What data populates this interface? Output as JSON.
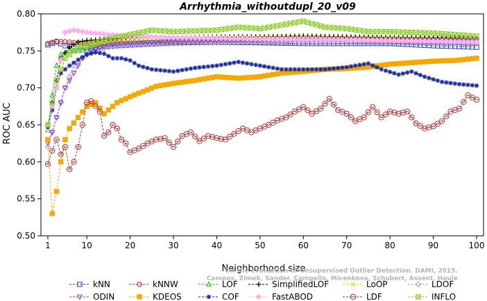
{
  "chart_data": {
    "type": "line",
    "title": "Arrhythmia_withoutdupl_20_v09",
    "xlabel": "Neighborhood size",
    "ylabel": "ROC AUC",
    "xlim": [
      1,
      100
    ],
    "ylim": [
      0.5,
      0.8
    ],
    "xticks": [
      1,
      10,
      20,
      30,
      40,
      50,
      60,
      70,
      80,
      90,
      100
    ],
    "yticks": [
      0.5,
      0.55,
      0.6,
      0.65,
      0.7,
      0.75,
      0.8
    ],
    "xtick_labels": [
      "1",
      "10",
      "20",
      "30",
      "40",
      "50",
      "60",
      "70",
      "80",
      "90",
      "100"
    ],
    "ytick_labels": [
      "0.50",
      "0.55",
      "0.60",
      "0.65",
      "0.70",
      "0.75",
      "0.80"
    ],
    "grid": false,
    "legend_position": "bottom",
    "series": [
      {
        "name": "kNN",
        "color": "#1f3fbf",
        "marker": "square",
        "points": [
          [
            1,
            0.758
          ],
          [
            3,
            0.762
          ],
          [
            5,
            0.757
          ],
          [
            10,
            0.755
          ],
          [
            20,
            0.758
          ],
          [
            30,
            0.761
          ],
          [
            40,
            0.762
          ],
          [
            50,
            0.761
          ],
          [
            60,
            0.76
          ],
          [
            70,
            0.76
          ],
          [
            80,
            0.76
          ],
          [
            90,
            0.757
          ],
          [
            100,
            0.755
          ]
        ]
      },
      {
        "name": "kNNW",
        "color": "#cc2020",
        "marker": "circle",
        "points": [
          [
            1,
            0.76
          ],
          [
            3,
            0.763
          ],
          [
            10,
            0.76
          ],
          [
            20,
            0.761
          ],
          [
            30,
            0.762
          ],
          [
            40,
            0.762
          ],
          [
            50,
            0.762
          ],
          [
            60,
            0.762
          ],
          [
            70,
            0.763
          ],
          [
            80,
            0.763
          ],
          [
            90,
            0.762
          ],
          [
            100,
            0.76
          ]
        ]
      },
      {
        "name": "LOF",
        "color": "#22bb22",
        "marker": "triangle-up",
        "points": [
          [
            1,
            0.643
          ],
          [
            2,
            0.69
          ],
          [
            3,
            0.73
          ],
          [
            4,
            0.745
          ],
          [
            6,
            0.75
          ],
          [
            8,
            0.75
          ],
          [
            10,
            0.752
          ],
          [
            15,
            0.758
          ],
          [
            20,
            0.762
          ],
          [
            30,
            0.764
          ],
          [
            40,
            0.765
          ],
          [
            50,
            0.766
          ],
          [
            60,
            0.766
          ],
          [
            70,
            0.767
          ],
          [
            80,
            0.766
          ],
          [
            90,
            0.766
          ],
          [
            100,
            0.765
          ]
        ]
      },
      {
        "name": "SimplifiedLOF",
        "color": "#000000",
        "marker": "plus",
        "points": [
          [
            1,
            0.65
          ],
          [
            2,
            0.68
          ],
          [
            3,
            0.71
          ],
          [
            4,
            0.74
          ],
          [
            6,
            0.755
          ],
          [
            8,
            0.762
          ],
          [
            10,
            0.764
          ],
          [
            20,
            0.768
          ],
          [
            30,
            0.768
          ],
          [
            40,
            0.769
          ],
          [
            50,
            0.769
          ],
          [
            60,
            0.77
          ],
          [
            70,
            0.769
          ],
          [
            80,
            0.768
          ],
          [
            90,
            0.768
          ],
          [
            100,
            0.767
          ]
        ]
      },
      {
        "name": "LoOP",
        "color": "#e8d800",
        "marker": "x",
        "points": [
          [
            1,
            0.645
          ],
          [
            3,
            0.7
          ],
          [
            5,
            0.74
          ],
          [
            8,
            0.755
          ],
          [
            10,
            0.758
          ],
          [
            20,
            0.764
          ],
          [
            30,
            0.766
          ],
          [
            40,
            0.767
          ],
          [
            50,
            0.767
          ],
          [
            60,
            0.768
          ],
          [
            70,
            0.767
          ],
          [
            80,
            0.767
          ],
          [
            90,
            0.766
          ],
          [
            100,
            0.765
          ]
        ]
      },
      {
        "name": "LDOF",
        "color": "#9c9ce0",
        "marker": "diamond",
        "points": [
          [
            1,
            0.62
          ],
          [
            2,
            0.64
          ],
          [
            3,
            0.66
          ],
          [
            5,
            0.7
          ],
          [
            7,
            0.73
          ],
          [
            10,
            0.745
          ],
          [
            15,
            0.755
          ],
          [
            20,
            0.758
          ],
          [
            30,
            0.76
          ],
          [
            40,
            0.761
          ],
          [
            50,
            0.761
          ],
          [
            60,
            0.762
          ],
          [
            70,
            0.762
          ],
          [
            80,
            0.761
          ],
          [
            90,
            0.761
          ],
          [
            100,
            0.76
          ]
        ]
      },
      {
        "name": "ODIN",
        "color": "#9a32cc",
        "marker": "triangle-down",
        "points": [
          [
            1,
            0.625
          ],
          [
            2,
            0.64
          ],
          [
            3,
            0.66
          ],
          [
            4,
            0.68
          ],
          [
            5,
            0.7
          ],
          [
            7,
            0.72
          ],
          [
            9,
            0.74
          ],
          [
            11,
            0.75
          ],
          [
            15,
            0.758
          ],
          [
            20,
            0.76
          ],
          [
            30,
            0.763
          ],
          [
            40,
            0.764
          ],
          [
            50,
            0.765
          ],
          [
            60,
            0.765
          ],
          [
            70,
            0.765
          ],
          [
            80,
            0.764
          ],
          [
            90,
            0.764
          ],
          [
            100,
            0.763
          ]
        ]
      },
      {
        "name": "KDEOS",
        "color": "#f5a800",
        "marker": "square-filled",
        "points": [
          [
            1,
            0.63
          ],
          [
            2,
            0.53
          ],
          [
            3,
            0.56
          ],
          [
            4,
            0.6
          ],
          [
            5,
            0.63
          ],
          [
            6,
            0.645
          ],
          [
            8,
            0.66
          ],
          [
            10,
            0.675
          ],
          [
            12,
            0.68
          ],
          [
            14,
            0.665
          ],
          [
            17,
            0.68
          ],
          [
            20,
            0.688
          ],
          [
            23,
            0.695
          ],
          [
            26,
            0.702
          ],
          [
            30,
            0.706
          ],
          [
            35,
            0.71
          ],
          [
            40,
            0.715
          ],
          [
            45,
            0.713
          ],
          [
            50,
            0.715
          ],
          [
            55,
            0.72
          ],
          [
            60,
            0.722
          ],
          [
            65,
            0.725
          ],
          [
            70,
            0.726
          ],
          [
            75,
            0.728
          ],
          [
            80,
            0.732
          ],
          [
            85,
            0.734
          ],
          [
            90,
            0.736
          ],
          [
            95,
            0.737
          ],
          [
            100,
            0.74
          ]
        ]
      },
      {
        "name": "COF",
        "color": "#1a2a9c",
        "marker": "star",
        "points": [
          [
            1,
            0.647
          ],
          [
            2,
            0.67
          ],
          [
            3,
            0.7
          ],
          [
            4,
            0.72
          ],
          [
            6,
            0.73
          ],
          [
            8,
            0.738
          ],
          [
            10,
            0.745
          ],
          [
            12,
            0.748
          ],
          [
            14,
            0.746
          ],
          [
            16,
            0.74
          ],
          [
            18,
            0.74
          ],
          [
            20,
            0.737
          ],
          [
            22,
            0.73
          ],
          [
            25,
            0.725
          ],
          [
            30,
            0.722
          ],
          [
            35,
            0.727
          ],
          [
            40,
            0.73
          ],
          [
            45,
            0.735
          ],
          [
            50,
            0.73
          ],
          [
            55,
            0.725
          ],
          [
            60,
            0.725
          ],
          [
            65,
            0.725
          ],
          [
            70,
            0.728
          ],
          [
            75,
            0.733
          ],
          [
            78,
            0.725
          ],
          [
            82,
            0.718
          ],
          [
            85,
            0.722
          ],
          [
            88,
            0.715
          ],
          [
            92,
            0.708
          ],
          [
            96,
            0.705
          ],
          [
            100,
            0.703
          ]
        ]
      },
      {
        "name": "FastABOD",
        "color": "#ffb0f0",
        "marker": "diamond-filled",
        "points": [
          [
            1,
            0.65
          ],
          [
            3,
            0.7
          ],
          [
            5,
            0.775
          ],
          [
            7,
            0.778
          ],
          [
            10,
            0.775
          ],
          [
            15,
            0.772
          ],
          [
            20,
            0.77
          ],
          [
            30,
            0.768
          ],
          [
            40,
            0.767
          ],
          [
            50,
            0.766
          ],
          [
            60,
            0.765
          ],
          [
            70,
            0.765
          ],
          [
            80,
            0.764
          ],
          [
            90,
            0.763
          ],
          [
            100,
            0.762
          ]
        ]
      },
      {
        "name": "LDF",
        "color": "#b03030",
        "marker": "circle-x",
        "points": [
          [
            1,
            0.597
          ],
          [
            2,
            0.615
          ],
          [
            3,
            0.63
          ],
          [
            4,
            0.61
          ],
          [
            5,
            0.62
          ],
          [
            6,
            0.59
          ],
          [
            7,
            0.6
          ],
          [
            8,
            0.62
          ],
          [
            9,
            0.65
          ],
          [
            10,
            0.68
          ],
          [
            11,
            0.682
          ],
          [
            12,
            0.675
          ],
          [
            13,
            0.668
          ],
          [
            14,
            0.635
          ],
          [
            15,
            0.64
          ],
          [
            16,
            0.65
          ],
          [
            17,
            0.645
          ],
          [
            18,
            0.63
          ],
          [
            19,
            0.625
          ],
          [
            20,
            0.613
          ],
          [
            22,
            0.618
          ],
          [
            24,
            0.625
          ],
          [
            26,
            0.63
          ],
          [
            28,
            0.632
          ],
          [
            30,
            0.62
          ],
          [
            32,
            0.635
          ],
          [
            34,
            0.64
          ],
          [
            36,
            0.628
          ],
          [
            38,
            0.635
          ],
          [
            40,
            0.632
          ],
          [
            42,
            0.63
          ],
          [
            44,
            0.638
          ],
          [
            46,
            0.645
          ],
          [
            48,
            0.64
          ],
          [
            50,
            0.645
          ],
          [
            52,
            0.65
          ],
          [
            54,
            0.656
          ],
          [
            56,
            0.66
          ],
          [
            58,
            0.668
          ],
          [
            60,
            0.674
          ],
          [
            62,
            0.665
          ],
          [
            64,
            0.672
          ],
          [
            66,
            0.685
          ],
          [
            68,
            0.67
          ],
          [
            70,
            0.665
          ],
          [
            72,
            0.655
          ],
          [
            74,
            0.66
          ],
          [
            76,
            0.674
          ],
          [
            78,
            0.66
          ],
          [
            80,
            0.668
          ],
          [
            82,
            0.665
          ],
          [
            84,
            0.668
          ],
          [
            86,
            0.652
          ],
          [
            88,
            0.645
          ],
          [
            90,
            0.648
          ],
          [
            92,
            0.655
          ],
          [
            94,
            0.668
          ],
          [
            96,
            0.672
          ],
          [
            98,
            0.69
          ],
          [
            100,
            0.684
          ]
        ]
      },
      {
        "name": "INFLO",
        "color": "#88cc22",
        "marker": "square-x",
        "points": [
          [
            1,
            0.65
          ],
          [
            3,
            0.71
          ],
          [
            5,
            0.74
          ],
          [
            8,
            0.755
          ],
          [
            10,
            0.758
          ],
          [
            15,
            0.766
          ],
          [
            20,
            0.772
          ],
          [
            25,
            0.778
          ],
          [
            30,
            0.776
          ],
          [
            40,
            0.778
          ],
          [
            45,
            0.782
          ],
          [
            50,
            0.78
          ],
          [
            55,
            0.785
          ],
          [
            60,
            0.79
          ],
          [
            65,
            0.782
          ],
          [
            70,
            0.78
          ],
          [
            75,
            0.776
          ],
          [
            80,
            0.776
          ],
          [
            85,
            0.775
          ],
          [
            90,
            0.774
          ],
          [
            95,
            0.772
          ],
          [
            100,
            0.77
          ]
        ]
      }
    ]
  },
  "watermark": {
    "line1": "Campos, Zimek, Sander, Campello, Micenkova, Schubert, Assent, Houle",
    "line2": "On the Evaluation of Unsupervised Outlier Detection. DAMI, 2015."
  }
}
